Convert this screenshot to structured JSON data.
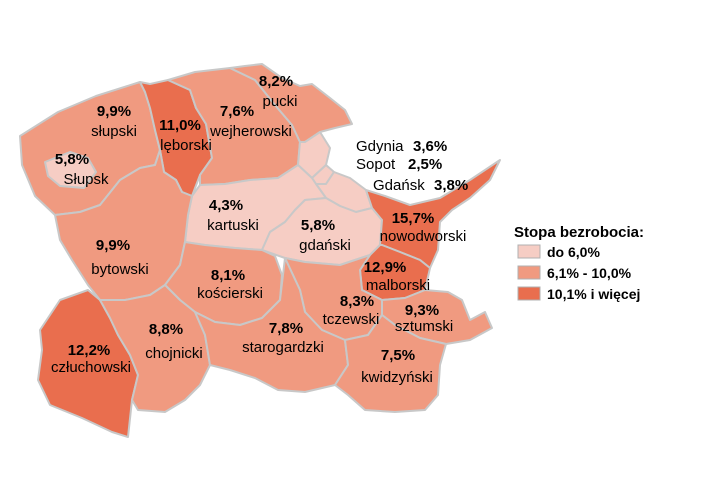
{
  "colors": {
    "low": "#f6cdc4",
    "mid": "#f09a80",
    "high": "#e96e4e",
    "border": "#c8c8c8"
  },
  "legend": {
    "title": "Stopa bezrobocia:",
    "items": [
      {
        "label": "do 6,0%",
        "class": "low"
      },
      {
        "label": "6,1% - 10,0%",
        "class": "mid"
      },
      {
        "label": "10,1% i więcej",
        "class": "high"
      }
    ]
  },
  "regions": [
    {
      "id": "slupski",
      "name": "słupski",
      "value": "9,9%",
      "class": "mid"
    },
    {
      "id": "slupsk",
      "name": "Słupsk",
      "value": "5,8%",
      "class": "low"
    },
    {
      "id": "leborski",
      "name": "lęborski",
      "value": "11,0%",
      "class": "high"
    },
    {
      "id": "wejherowski",
      "name": "wejherowski",
      "value": "7,6%",
      "class": "mid"
    },
    {
      "id": "pucki",
      "name": "pucki",
      "value": "8,2%",
      "class": "mid"
    },
    {
      "id": "gdynia",
      "name": "Gdynia",
      "value": "3,6%",
      "class": "low"
    },
    {
      "id": "sopot",
      "name": "Sopot",
      "value": "2,5%",
      "class": "low"
    },
    {
      "id": "gdansk",
      "name": "Gdańsk",
      "value": "3,8%",
      "class": "low"
    },
    {
      "id": "kartuski",
      "name": "kartuski",
      "value": "4,3%",
      "class": "low"
    },
    {
      "id": "gdanski",
      "name": "gdański",
      "value": "5,8%",
      "class": "low"
    },
    {
      "id": "nowodworski",
      "name": "nowodworski",
      "value": "15,7%",
      "class": "high"
    },
    {
      "id": "bytowski",
      "name": "bytowski",
      "value": "9,9%",
      "class": "mid"
    },
    {
      "id": "koscierski",
      "name": "kościerski",
      "value": "8,1%",
      "class": "mid"
    },
    {
      "id": "malborski",
      "name": "malborski",
      "value": "12,9%",
      "class": "high"
    },
    {
      "id": "tczewski",
      "name": "tczewski",
      "value": "8,3%",
      "class": "mid"
    },
    {
      "id": "sztumski",
      "name": "sztumski",
      "value": "9,3%",
      "class": "mid"
    },
    {
      "id": "czluchowski",
      "name": "człuchowski",
      "value": "12,2%",
      "class": "high"
    },
    {
      "id": "chojnicki",
      "name": "chojnicki",
      "value": "8,8%",
      "class": "mid"
    },
    {
      "id": "starogardzki",
      "name": "starogardzki",
      "value": "7,8%",
      "class": "mid"
    },
    {
      "id": "kwidzynski",
      "name": "kwidzyński",
      "value": "7,5%",
      "class": "mid"
    }
  ]
}
